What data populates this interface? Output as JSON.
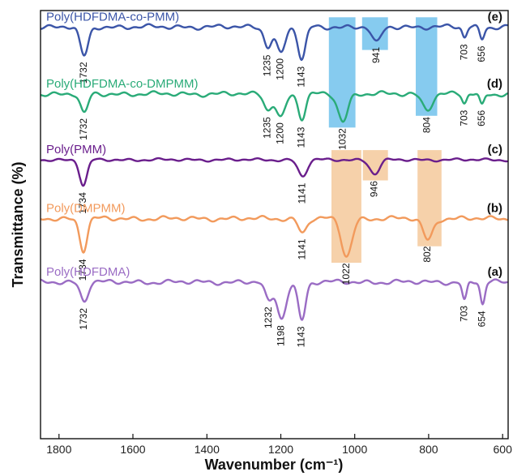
{
  "chart_data": {
    "type": "line",
    "xlabel": "Wavenumber (cm⁻¹)",
    "ylabel": "Transmittance (%)",
    "xlim": [
      1850,
      585
    ],
    "x_reversed": true,
    "x_ticks": [
      1800,
      1600,
      1400,
      1200,
      1000,
      800,
      600
    ],
    "grid": false,
    "highlight_colors": {
      "blue": "#7fc8ee",
      "orange": "#f6cfa5"
    },
    "highlight_bands": [
      {
        "color": "blue",
        "x_range": [
          1070,
          998
        ],
        "spans": [
          "e",
          "d"
        ]
      },
      {
        "color": "blue",
        "x_range": [
          980,
          910
        ],
        "spans": [
          "e"
        ]
      },
      {
        "color": "blue",
        "x_range": [
          835,
          777
        ],
        "spans": [
          "e",
          "d"
        ]
      },
      {
        "color": "orange",
        "x_range": [
          1063,
          982
        ],
        "spans": [
          "c",
          "b"
        ]
      },
      {
        "color": "orange",
        "x_range": [
          978,
          910
        ],
        "spans": [
          "c"
        ]
      },
      {
        "color": "orange",
        "x_range": [
          830,
          765
        ],
        "spans": [
          "c",
          "b"
        ]
      }
    ],
    "series": [
      {
        "id": "e",
        "name": "Poly(HDFDMA-co-PMM)",
        "letter": "(e)",
        "color": "#3b55a8",
        "offset": 0.5,
        "baseline_noise": 0.25,
        "peaks": [
          {
            "x": 1732,
            "depth": 2.5,
            "width": 11,
            "label": "1732"
          },
          {
            "x": 1235,
            "depth": 1.6,
            "width": 10,
            "label": "1235"
          },
          {
            "x": 1200,
            "depth": 2.2,
            "width": 12,
            "label": "1200"
          },
          {
            "x": 1143,
            "depth": 2.8,
            "width": 10,
            "label": "1143"
          },
          {
            "x": 941,
            "depth": 1.4,
            "width": 12,
            "label": "941"
          },
          {
            "x": 703,
            "depth": 0.9,
            "width": 6,
            "label": "703"
          },
          {
            "x": 656,
            "depth": 1.0,
            "width": 6,
            "label": "656"
          }
        ]
      },
      {
        "id": "d",
        "name": "Poly(HDFDMA-co-DMPMM)",
        "letter": "(d)",
        "color": "#2aab78",
        "offset": 6.2,
        "baseline_noise": 0.25,
        "peaks": [
          {
            "x": 1732,
            "depth": 1.7,
            "width": 10,
            "label": "1732"
          },
          {
            "x": 1235,
            "depth": 1.3,
            "width": 10,
            "label": "1235"
          },
          {
            "x": 1200,
            "depth": 2.0,
            "width": 12,
            "label": "1200"
          },
          {
            "x": 1143,
            "depth": 2.1,
            "width": 10,
            "label": "1143"
          },
          {
            "x": 1032,
            "depth": 2.3,
            "width": 13,
            "label": "1032"
          },
          {
            "x": 804,
            "depth": 1.3,
            "width": 13,
            "label": "804"
          },
          {
            "x": 703,
            "depth": 0.8,
            "width": 6,
            "label": "703"
          },
          {
            "x": 656,
            "depth": 1.0,
            "width": 6,
            "label": "656"
          }
        ]
      },
      {
        "id": "c",
        "name": "Poly(PMM)",
        "letter": "(c)",
        "color": "#6a1e8c",
        "offset": 11.8,
        "baseline_noise": 0.15,
        "peaks": [
          {
            "x": 1734,
            "depth": 2.2,
            "width": 10,
            "label": "1734"
          },
          {
            "x": 1141,
            "depth": 1.4,
            "width": 12,
            "label": "1141"
          },
          {
            "x": 946,
            "depth": 1.2,
            "width": 13,
            "label": "946"
          }
        ]
      },
      {
        "id": "b",
        "name": "Poly(DMPMM)",
        "letter": "(b)",
        "color": "#f29a5c",
        "offset": 16.8,
        "baseline_noise": 0.25,
        "peaks": [
          {
            "x": 1734,
            "depth": 2.7,
            "width": 10,
            "label": "1734"
          },
          {
            "x": 1141,
            "depth": 1.2,
            "width": 11,
            "label": "1141"
          },
          {
            "x": 1022,
            "depth": 3.2,
            "width": 14,
            "label": "1022"
          },
          {
            "x": 802,
            "depth": 1.8,
            "width": 13,
            "label": "802"
          }
        ]
      },
      {
        "id": "a",
        "name": "Poly(HDFDMA)",
        "letter": "(a)",
        "color": "#9a6cc4",
        "offset": 22.2,
        "baseline_noise": 0.25,
        "peaks": [
          {
            "x": 1732,
            "depth": 1.6,
            "width": 10,
            "label": "1732"
          },
          {
            "x": 1232,
            "depth": 1.7,
            "width": 10,
            "label": "1232"
          },
          {
            "x": 1198,
            "depth": 3.1,
            "width": 12,
            "label": "1198"
          },
          {
            "x": 1143,
            "depth": 3.2,
            "width": 10,
            "label": "1143"
          },
          {
            "x": 703,
            "depth": 1.6,
            "width": 6,
            "label": "703"
          },
          {
            "x": 654,
            "depth": 1.9,
            "width": 6,
            "label": "654"
          }
        ]
      }
    ]
  }
}
